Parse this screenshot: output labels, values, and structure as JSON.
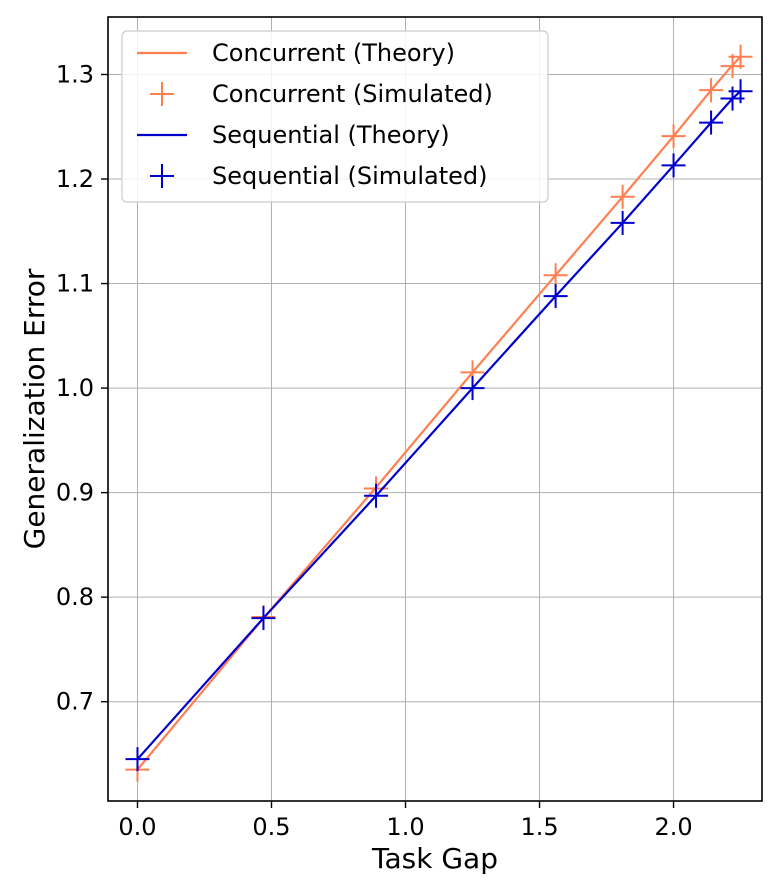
{
  "chart_data": {
    "type": "line",
    "title": "",
    "xlabel": "Task Gap",
    "ylabel": "Generalization Error",
    "xlim": [
      -0.11,
      2.33
    ],
    "ylim": [
      0.605,
      1.355
    ],
    "xticks": [
      0.0,
      0.5,
      1.0,
      1.5,
      2.0
    ],
    "xtick_labels": [
      "0.0",
      "0.5",
      "1.0",
      "1.5",
      "2.0"
    ],
    "yticks": [
      0.7,
      0.8,
      0.9,
      1.0,
      1.1,
      1.2,
      1.3
    ],
    "ytick_labels": [
      "0.7",
      "0.8",
      "0.9",
      "1.0",
      "1.1",
      "1.2",
      "1.3"
    ],
    "grid": true,
    "legend_position": "top-left",
    "series": [
      {
        "name": "Concurrent (Theory)",
        "kind": "line",
        "color": "#ff7f50",
        "x": [
          0.0,
          0.47,
          0.89,
          1.25,
          1.56,
          1.81,
          2.0,
          2.14,
          2.22,
          2.25
        ],
        "y": [
          0.635,
          0.78,
          0.905,
          1.015,
          1.108,
          1.183,
          1.241,
          1.285,
          1.309,
          1.317
        ]
      },
      {
        "name": "Concurrent (Simulated)",
        "kind": "marker",
        "color": "#ff7f50",
        "x": [
          0.0,
          0.47,
          0.89,
          1.25,
          1.56,
          1.81,
          2.0,
          2.14,
          2.22,
          2.25
        ],
        "y": [
          0.635,
          0.781,
          0.904,
          1.015,
          1.108,
          1.183,
          1.241,
          1.285,
          1.308,
          1.317
        ]
      },
      {
        "name": "Sequential (Theory)",
        "kind": "line",
        "color": "#0000cd",
        "x": [
          0.0,
          0.47,
          0.89,
          1.25,
          1.56,
          1.81,
          2.0,
          2.14,
          2.22,
          2.25
        ],
        "y": [
          0.645,
          0.78,
          0.897,
          1.0,
          1.088,
          1.158,
          1.213,
          1.254,
          1.277,
          1.284
        ]
      },
      {
        "name": "Sequential (Simulated)",
        "kind": "marker",
        "color": "#0000cd",
        "x": [
          0.0,
          0.47,
          0.89,
          1.25,
          1.56,
          1.81,
          2.0,
          2.14,
          2.22,
          2.25
        ],
        "y": [
          0.645,
          0.78,
          0.897,
          1.0,
          1.088,
          1.158,
          1.213,
          1.254,
          1.277,
          1.284
        ]
      }
    ]
  }
}
